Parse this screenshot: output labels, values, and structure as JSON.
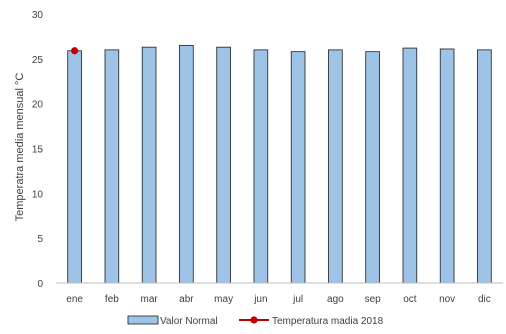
{
  "chart_data": {
    "type": "bar",
    "categories": [
      "ene",
      "feb",
      "mar",
      "abr",
      "may",
      "jun",
      "jul",
      "ago",
      "sep",
      "oct",
      "nov",
      "dic"
    ],
    "series": [
      {
        "name": "Valor Normal",
        "kind": "bar",
        "color": "#9DC3E6",
        "stroke": "#1F1F1F",
        "values": [
          25.9,
          26.0,
          26.3,
          26.5,
          26.3,
          26.0,
          25.8,
          26.0,
          25.8,
          26.2,
          26.1,
          26.0
        ]
      },
      {
        "name": "Temperatura madia 2018",
        "kind": "line",
        "color": "#C00000",
        "values": [
          25.9,
          null,
          null,
          null,
          null,
          null,
          null,
          null,
          null,
          null,
          null,
          null
        ]
      }
    ],
    "title": "",
    "xlabel": "",
    "ylabel": "Temperatra media mensual °C",
    "ylim": [
      0,
      30
    ],
    "yticks": [
      0,
      5,
      10,
      15,
      20,
      25,
      30
    ],
    "grid": false,
    "legend": "bottom"
  }
}
